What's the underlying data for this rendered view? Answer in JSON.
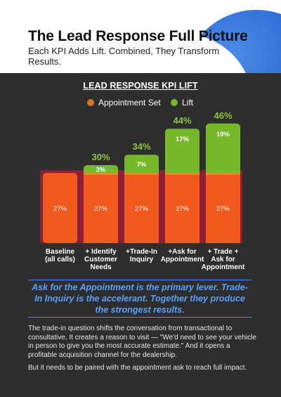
{
  "header": {
    "title": "The Lead Response Full Picture",
    "subtitle": "Each KPI Adds Lift. Combined, They Transform Results."
  },
  "chart_data": {
    "type": "bar",
    "stacked": true,
    "title": "LEAD RESPONSE KPI LIFT",
    "categories": [
      "Baseline (all calls)",
      "+ Identify Customer Needs",
      "+Trade-In Inquiry",
      "+Ask for Appointment",
      "+ Trade + Ask for Appointment"
    ],
    "category_lines": [
      [
        "Baseline",
        "(all calls)"
      ],
      [
        "+ Identify",
        "Customer",
        "Needs"
      ],
      [
        "+Trade-In",
        "Inquiry"
      ],
      [
        "+Ask for",
        "Appointment"
      ],
      [
        "+ Trade +",
        "Ask for",
        "Appointment"
      ]
    ],
    "series": [
      {
        "name": "Appointment Set",
        "values": [
          27,
          27,
          27,
          27,
          27
        ],
        "labels": [
          "27%",
          "27%",
          "27%",
          "27%",
          "27%"
        ],
        "color": "#f25a1d"
      },
      {
        "name": "Lift",
        "values": [
          0,
          3,
          7,
          17,
          19
        ],
        "labels": [
          "",
          "3%",
          "7%",
          "17%",
          "19%"
        ],
        "color": "#77b82a"
      }
    ],
    "totals": [
      "",
      "30%",
      "34%",
      "44%",
      "46%"
    ],
    "legend_placement": "top",
    "grid": false,
    "ylim": [
      0,
      50
    ],
    "legend_dot_colors": {
      "appointment": "#d8731f",
      "lift": "#77b82a"
    },
    "baseline_band_color": "#8f1f38",
    "total_label_color": "#8cc63f"
  },
  "callout": {
    "text": "Ask for the Appointment is the primary lever. Trade-In Inquiry is the accelerant. Together they produce the strongest results."
  },
  "body": {
    "paragraph1": "The trade-in question shifts the conversation from transactional to consultative. It creates a reason to visit — \"We'd need to see your vehicle in person to give you the most accurate estimate.\" And it opens a profitable acquisition channel for the dealership.",
    "paragraph2": "But it needs to be paired with the appointment ask to reach full impact."
  }
}
